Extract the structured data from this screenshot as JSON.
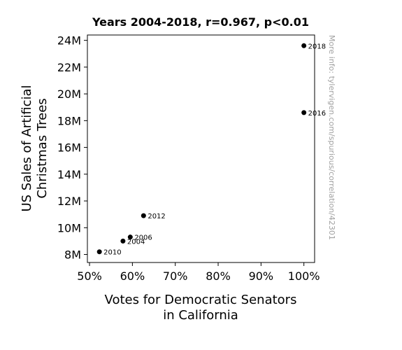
{
  "chart_data": {
    "type": "scatter",
    "title": "Years 2004-2018, r=0.967, p<0.01",
    "xlabel": [
      "Votes for Democratic Senators",
      "in California"
    ],
    "ylabel": [
      "US Sales of Artificial",
      "Christmas Trees"
    ],
    "watermark": "More info: tylervigen.com/spurious/correlation/42301",
    "xlim": [
      0.495,
      1.025
    ],
    "ylim": [
      7.4,
      24.4
    ],
    "x_ticks": [
      {
        "value": 0.5,
        "label": "50%"
      },
      {
        "value": 0.6,
        "label": "60%"
      },
      {
        "value": 0.7,
        "label": "70%"
      },
      {
        "value": 0.8,
        "label": "80%"
      },
      {
        "value": 0.9,
        "label": "90%"
      },
      {
        "value": 1.0,
        "label": "100%"
      }
    ],
    "y_ticks": [
      {
        "value": 8,
        "label": "8M"
      },
      {
        "value": 10,
        "label": "10M"
      },
      {
        "value": 12,
        "label": "12M"
      },
      {
        "value": 14,
        "label": "14M"
      },
      {
        "value": 16,
        "label": "16M"
      },
      {
        "value": 18,
        "label": "18M"
      },
      {
        "value": 20,
        "label": "20M"
      },
      {
        "value": 22,
        "label": "22M"
      },
      {
        "value": 24,
        "label": "24M"
      }
    ],
    "points": [
      {
        "label": "2004",
        "x": 0.578,
        "y": 9.0
      },
      {
        "label": "2006",
        "x": 0.595,
        "y": 9.3
      },
      {
        "label": "2010",
        "x": 0.523,
        "y": 8.2
      },
      {
        "label": "2012",
        "x": 0.626,
        "y": 10.9
      },
      {
        "label": "2016",
        "x": 1.0,
        "y": 18.6
      },
      {
        "label": "2018",
        "x": 1.0,
        "y": 23.6
      }
    ],
    "point_color": "#000000",
    "watermark_color": "#a0a0a0",
    "grid": false
  }
}
